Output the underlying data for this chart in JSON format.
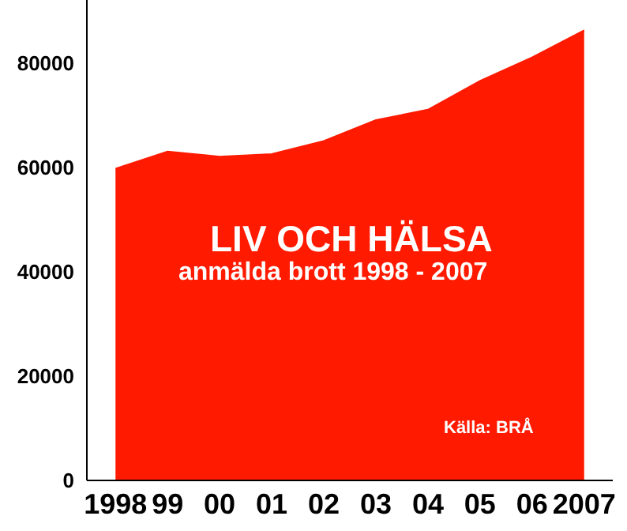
{
  "chart_data": {
    "type": "area",
    "title": "LIV OCH HÄLSA",
    "subtitle": "anmälda brott 1998 - 2007",
    "annotations": [
      "Källa: BRÅ"
    ],
    "categories": [
      "1998",
      "99",
      "00",
      "01",
      "02",
      "03",
      "04",
      "05",
      "06",
      "2007"
    ],
    "series": [
      {
        "color": "#ff1a00",
        "values": [
          59700,
          63000,
          62000,
          62500,
          65000,
          69000,
          71000,
          76500,
          81000,
          86200
        ]
      }
    ],
    "ylim": [
      0,
      92000
    ],
    "yticks": [
      0,
      20000,
      40000,
      60000,
      80000
    ],
    "grid": false,
    "legend": false
  }
}
